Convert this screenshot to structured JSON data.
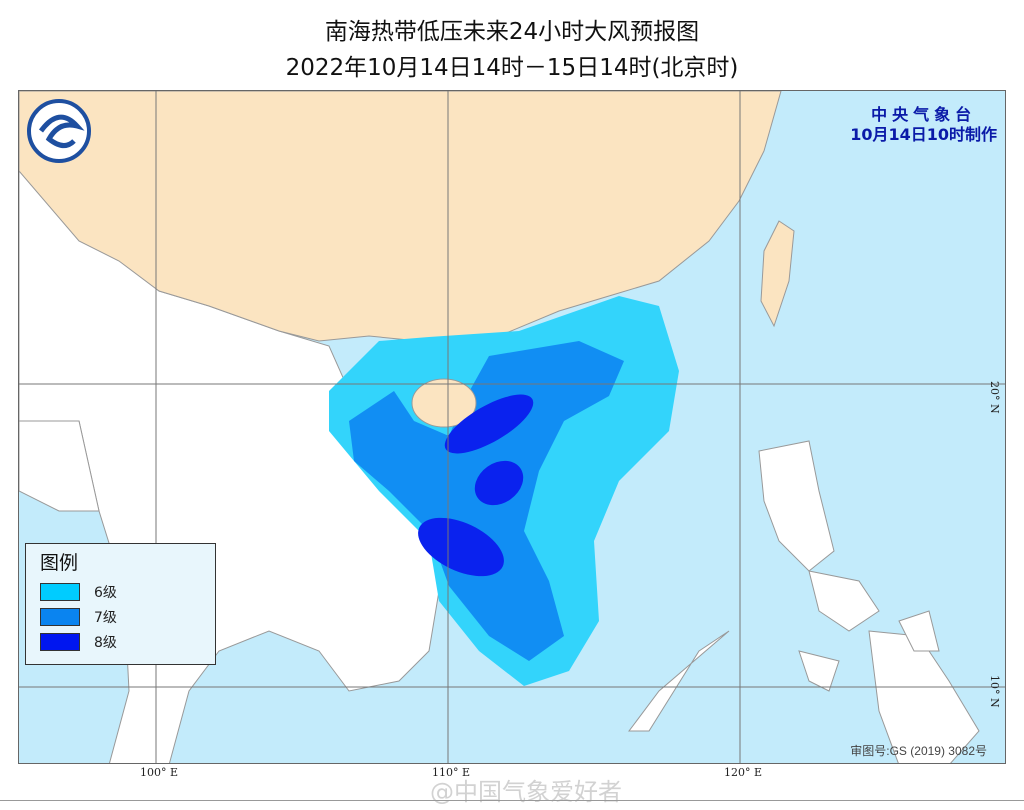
{
  "title": "南海热带低压未来24小时大风预报图",
  "subtitle": "2022年10月14日14时－15日14时(北京时)",
  "agency": {
    "name": "中央气象台",
    "issued": "10月14日10时制作"
  },
  "legend": {
    "title": "图例",
    "items": [
      {
        "label": "6级",
        "color": "#00ccff"
      },
      {
        "label": "7级",
        "color": "#0a84f0"
      },
      {
        "label": "8级",
        "color": "#0016f0"
      }
    ]
  },
  "approval": "审图号:GS (2019) 3082号",
  "axes": {
    "lon": [
      "100° E",
      "110° E",
      "120° E"
    ],
    "lat": [
      "20° N",
      "10° N"
    ]
  },
  "watermark": "@中国气象爱好者",
  "colors": {
    "sea": "#c3ebfb",
    "china": "#fbe4c1",
    "other_land": "#ffffff"
  }
}
